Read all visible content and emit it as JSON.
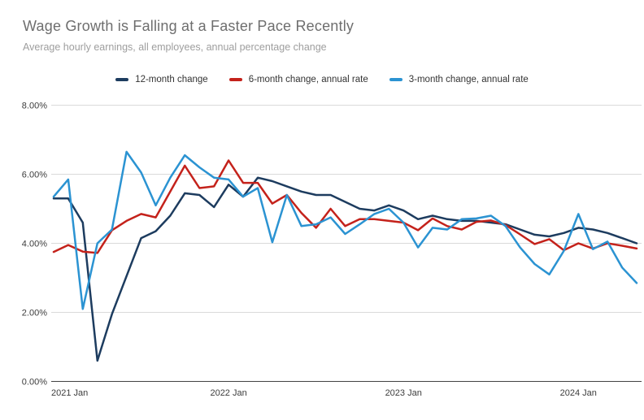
{
  "header": {
    "title": "Wage Growth is Falling at a Faster Pace Recently",
    "subtitle": "Average hourly earnings, all employees, annual percentage change"
  },
  "chart_data": {
    "type": "line",
    "title": "Wage Growth is Falling at a Faster Pace Recently",
    "subtitle": "Average hourly earnings, all employees, annual percentage change",
    "xlabel": "",
    "ylabel": "",
    "ylim": [
      0,
      8
    ],
    "grid": "horizontal",
    "legend_position": "top-center",
    "background": "#ffffff",
    "gridline_color": "#dadada",
    "axis_line_color": "#424242",
    "x": [
      "2021-01",
      "2021-02",
      "2021-03",
      "2021-04",
      "2021-05",
      "2021-06",
      "2021-07",
      "2021-08",
      "2021-09",
      "2021-10",
      "2021-11",
      "2021-12",
      "2022-01",
      "2022-02",
      "2022-03",
      "2022-04",
      "2022-05",
      "2022-06",
      "2022-07",
      "2022-08",
      "2022-09",
      "2022-10",
      "2022-11",
      "2022-12",
      "2023-01",
      "2023-02",
      "2023-03",
      "2023-04",
      "2023-05",
      "2023-06",
      "2023-07",
      "2023-08",
      "2023-09",
      "2023-10",
      "2023-11",
      "2023-12",
      "2024-01",
      "2024-02",
      "2024-03",
      "2024-04",
      "2024-05"
    ],
    "x_tick_labels": [
      {
        "label": "2021 Jan",
        "index": 0
      },
      {
        "label": "2022 Jan",
        "index": 12
      },
      {
        "label": "2023 Jan",
        "index": 24
      },
      {
        "label": "2024 Jan",
        "index": 36
      }
    ],
    "y_ticks": [
      {
        "label": "0.00%",
        "value": 0
      },
      {
        "label": "2.00%",
        "value": 2
      },
      {
        "label": "4.00%",
        "value": 4
      },
      {
        "label": "6.00%",
        "value": 6
      },
      {
        "label": "8.00%",
        "value": 8
      }
    ],
    "series": [
      {
        "name": "12-month change",
        "color": "#1d3c5f",
        "values": [
          5.3,
          5.3,
          4.6,
          0.6,
          1.95,
          3.05,
          4.15,
          4.35,
          4.8,
          5.45,
          5.4,
          5.05,
          5.7,
          5.35,
          5.9,
          5.8,
          5.65,
          5.5,
          5.4,
          5.4,
          5.2,
          5.0,
          4.95,
          5.1,
          4.95,
          4.7,
          4.8,
          4.7,
          4.65,
          4.65,
          4.6,
          4.55,
          4.4,
          4.25,
          4.2,
          4.3,
          4.45,
          4.4,
          4.3,
          4.15,
          4.0
        ]
      },
      {
        "name": "6-month change, annual rate",
        "color": "#c4221b",
        "values": [
          3.75,
          3.95,
          3.76,
          3.72,
          4.38,
          4.65,
          4.85,
          4.75,
          5.5,
          6.25,
          5.6,
          5.65,
          6.4,
          5.75,
          5.75,
          5.15,
          5.4,
          4.88,
          4.45,
          5.0,
          4.5,
          4.7,
          4.7,
          4.65,
          4.6,
          4.38,
          4.72,
          4.5,
          4.4,
          4.62,
          4.66,
          4.53,
          4.26,
          3.98,
          4.12,
          3.8,
          4.0,
          3.85,
          4.0,
          3.93,
          3.85
        ]
      },
      {
        "name": "3-month change, annual rate",
        "color": "#2b93d2",
        "values": [
          5.35,
          5.85,
          2.1,
          4.0,
          4.4,
          6.65,
          6.05,
          5.1,
          5.9,
          6.55,
          6.2,
          5.9,
          5.85,
          5.35,
          5.6,
          4.03,
          5.4,
          4.5,
          4.55,
          4.75,
          4.27,
          4.55,
          4.85,
          5.0,
          4.6,
          3.88,
          4.45,
          4.4,
          4.7,
          4.72,
          4.8,
          4.5,
          3.88,
          3.4,
          3.1,
          3.78,
          4.85,
          3.83,
          4.05,
          3.3,
          2.85
        ]
      }
    ]
  }
}
